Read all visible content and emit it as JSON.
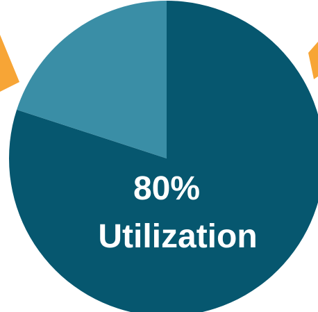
{
  "chart_data": {
    "type": "pie",
    "slices": [
      {
        "value": 80,
        "color": "#06576F"
      },
      {
        "value": 20,
        "color": "#3A8EA6"
      }
    ],
    "center_label": {
      "line1": "80%",
      "line2": "Utilization"
    },
    "accent_color": "#F7A536"
  }
}
